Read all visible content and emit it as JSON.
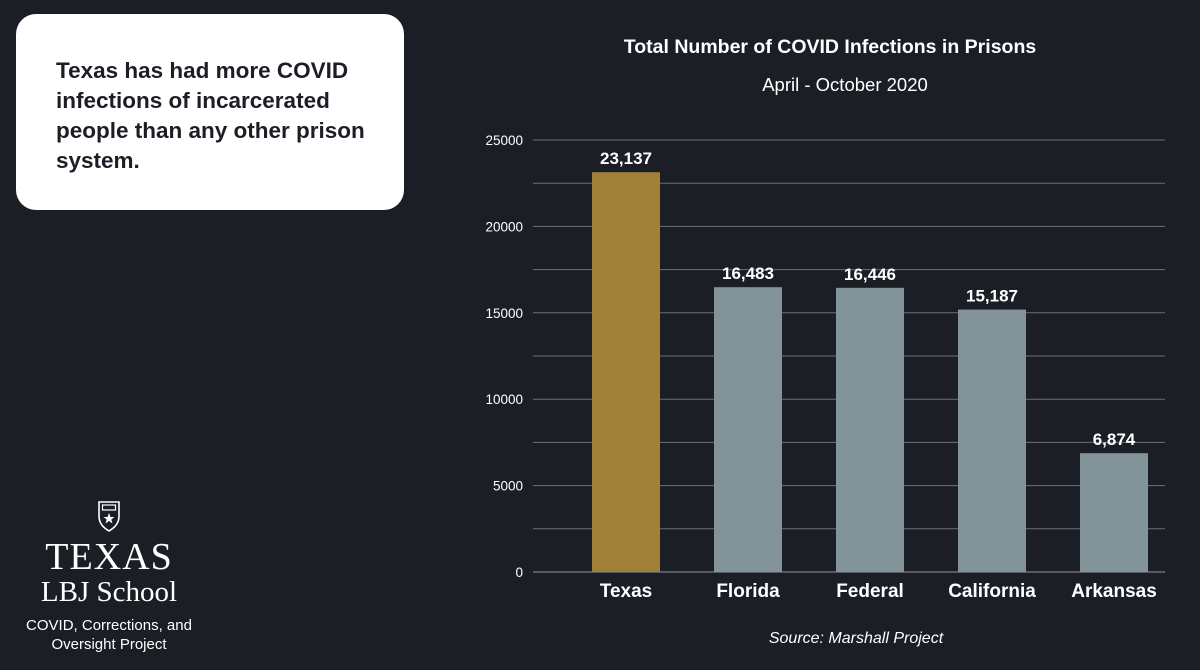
{
  "callout": {
    "text": "Texas has had more COVID infections of incarcerated people than any other prison system."
  },
  "logo": {
    "wordmark": "TEXAS",
    "school": "LBJ School",
    "project": "COVID, Corrections, and Oversight Project"
  },
  "chart_data": {
    "type": "bar",
    "title": "Total Number of COVID Infections in Prisons",
    "subtitle": "April - October 2020",
    "source": "Source: Marshall Project",
    "categories": [
      "Texas",
      "Florida",
      "Federal",
      "California",
      "Arkansas"
    ],
    "values": [
      23137,
      16483,
      16446,
      15187,
      6874
    ],
    "data_labels": [
      "23,137",
      "16,483",
      "16,446",
      "15,187",
      "6,874"
    ],
    "ylim": [
      0,
      25000
    ],
    "yticks": [
      0,
      5000,
      10000,
      15000,
      20000,
      25000
    ],
    "grid": true,
    "legend": "none",
    "colors": {
      "highlight": "#a1813a",
      "bar": "#82939a",
      "grid": "#6b6f77",
      "text": "#ffffff",
      "background": "#1c1e26"
    }
  }
}
